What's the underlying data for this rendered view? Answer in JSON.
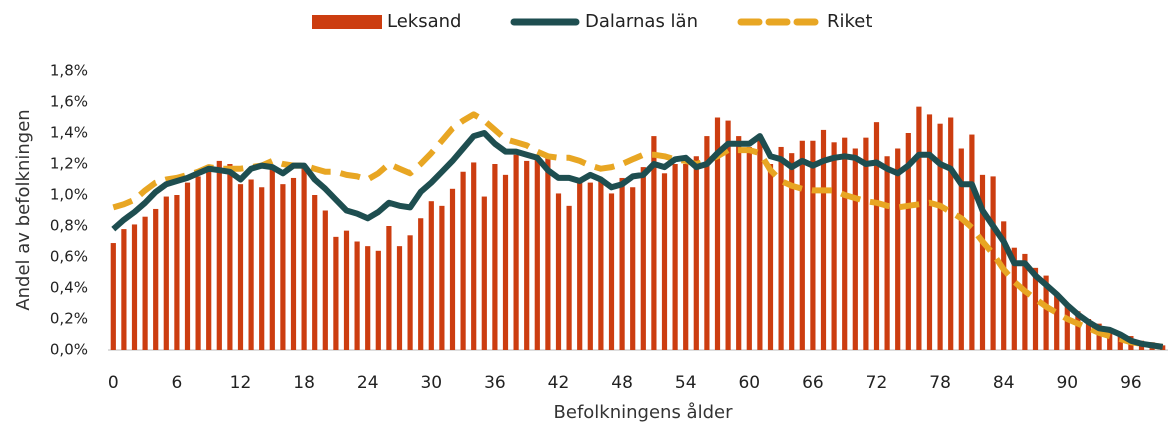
{
  "chart_data": {
    "type": "bar_line",
    "x_label": "Befolkningens ålder",
    "y_label": "Andel av befolkningen",
    "categories": [
      "0",
      null,
      null,
      null,
      null,
      null,
      "6",
      null,
      null,
      null,
      null,
      null,
      "12",
      null,
      null,
      null,
      null,
      null,
      "18",
      null,
      null,
      null,
      null,
      null,
      "24",
      null,
      null,
      null,
      null,
      null,
      "30",
      null,
      null,
      null,
      null,
      null,
      "36",
      null,
      null,
      null,
      null,
      null,
      "42",
      null,
      null,
      null,
      null,
      null,
      "48",
      null,
      null,
      null,
      null,
      null,
      "54",
      null,
      null,
      null,
      null,
      null,
      "60",
      null,
      null,
      null,
      null,
      null,
      "66",
      null,
      null,
      null,
      null,
      null,
      "72",
      null,
      null,
      null,
      null,
      null,
      "78",
      null,
      null,
      null,
      null,
      null,
      "84",
      null,
      null,
      null,
      null,
      null,
      "90",
      null,
      null,
      null,
      null,
      null,
      "96",
      null,
      null,
      null
    ],
    "series": [
      {
        "name": "Leksand",
        "kind": "bar",
        "color": "#cc3d10",
        "values": [
          0.69,
          0.78,
          0.81,
          0.86,
          0.91,
          0.99,
          1.0,
          1.08,
          1.12,
          1.18,
          1.22,
          1.2,
          1.07,
          1.1,
          1.05,
          1.18,
          1.07,
          1.11,
          1.18,
          1.0,
          0.9,
          0.73,
          0.77,
          0.7,
          0.67,
          0.64,
          0.8,
          0.67,
          0.74,
          0.85,
          0.96,
          0.93,
          1.04,
          1.15,
          1.21,
          0.99,
          1.2,
          1.13,
          1.26,
          1.22,
          1.25,
          1.24,
          1.01,
          0.93,
          1.09,
          1.08,
          1.09,
          1.01,
          1.11,
          1.05,
          1.18,
          1.38,
          1.14,
          1.2,
          1.2,
          1.25,
          1.38,
          1.5,
          1.48,
          1.38,
          1.31,
          1.36,
          1.2,
          1.31,
          1.27,
          1.35,
          1.35,
          1.42,
          1.34,
          1.37,
          1.3,
          1.37,
          1.47,
          1.25,
          1.3,
          1.4,
          1.57,
          1.52,
          1.46,
          1.5,
          1.3,
          1.39,
          1.13,
          1.12,
          0.83,
          0.66,
          0.62,
          0.53,
          0.48,
          0.35,
          0.3,
          0.25,
          0.2,
          0.17,
          0.14,
          0.1,
          0.09,
          0.06,
          0.05,
          0.03
        ]
      },
      {
        "name": "Dalarnas län",
        "kind": "line",
        "color": "#1e4e50",
        "values": [
          0.78,
          0.84,
          0.89,
          0.95,
          1.02,
          1.07,
          1.09,
          1.11,
          1.14,
          1.17,
          1.16,
          1.15,
          1.1,
          1.17,
          1.19,
          1.18,
          1.14,
          1.19,
          1.19,
          1.1,
          1.04,
          0.97,
          0.9,
          0.88,
          0.85,
          0.89,
          0.95,
          0.93,
          0.92,
          1.02,
          1.08,
          1.15,
          1.22,
          1.3,
          1.38,
          1.4,
          1.33,
          1.28,
          1.28,
          1.26,
          1.24,
          1.16,
          1.11,
          1.11,
          1.09,
          1.13,
          1.1,
          1.05,
          1.07,
          1.12,
          1.13,
          1.2,
          1.18,
          1.23,
          1.24,
          1.18,
          1.2,
          1.27,
          1.33,
          1.33,
          1.33,
          1.38,
          1.25,
          1.23,
          1.18,
          1.22,
          1.19,
          1.22,
          1.24,
          1.25,
          1.24,
          1.2,
          1.21,
          1.17,
          1.14,
          1.19,
          1.26,
          1.26,
          1.2,
          1.17,
          1.07,
          1.07,
          0.9,
          0.8,
          0.7,
          0.56,
          0.56,
          0.48,
          0.42,
          0.36,
          0.29,
          0.23,
          0.18,
          0.14,
          0.13,
          0.1,
          0.06,
          0.04,
          0.03,
          0.02
        ]
      },
      {
        "name": "Riket",
        "kind": "dashed",
        "color": "#e8a623",
        "values": [
          0.92,
          0.94,
          0.97,
          1.03,
          1.08,
          1.1,
          1.11,
          1.13,
          1.15,
          1.18,
          1.17,
          1.17,
          1.17,
          1.18,
          1.19,
          1.22,
          1.2,
          1.19,
          1.19,
          1.17,
          1.15,
          1.15,
          1.13,
          1.12,
          1.1,
          1.14,
          1.2,
          1.17,
          1.14,
          1.2,
          1.27,
          1.35,
          1.43,
          1.48,
          1.52,
          1.48,
          1.42,
          1.36,
          1.34,
          1.32,
          1.28,
          1.25,
          1.24,
          1.24,
          1.22,
          1.19,
          1.17,
          1.18,
          1.2,
          1.23,
          1.26,
          1.26,
          1.25,
          1.23,
          1.22,
          1.2,
          1.22,
          1.25,
          1.29,
          1.29,
          1.29,
          1.27,
          1.16,
          1.09,
          1.06,
          1.04,
          1.03,
          1.03,
          1.03,
          1.0,
          0.98,
          0.96,
          0.95,
          0.93,
          0.92,
          0.93,
          0.94,
          0.95,
          0.93,
          0.89,
          0.85,
          0.79,
          0.7,
          0.62,
          0.52,
          0.44,
          0.38,
          0.33,
          0.28,
          0.24,
          0.2,
          0.17,
          0.14,
          0.11,
          0.09,
          0.07,
          0.05,
          0.04,
          0.03,
          0.02
        ]
      }
    ],
    "ylim": [
      0,
      1.8
    ],
    "yticks": [
      {
        "value": 0,
        "label": "0,0%"
      },
      {
        "value": 0.2,
        "label": "0,2%"
      },
      {
        "value": 0.4,
        "label": "0,4%"
      },
      {
        "value": 0.6,
        "label": "0,6%"
      },
      {
        "value": 0.8,
        "label": "0,8%"
      },
      {
        "value": 1.0,
        "label": "1,0%"
      },
      {
        "value": 1.2,
        "label": "1,2%"
      },
      {
        "value": 1.4,
        "label": "1,4%"
      },
      {
        "value": 1.6,
        "label": "1,6%"
      },
      {
        "value": 1.8,
        "label": "1,8%"
      }
    ],
    "grid": false,
    "legend": "top"
  }
}
